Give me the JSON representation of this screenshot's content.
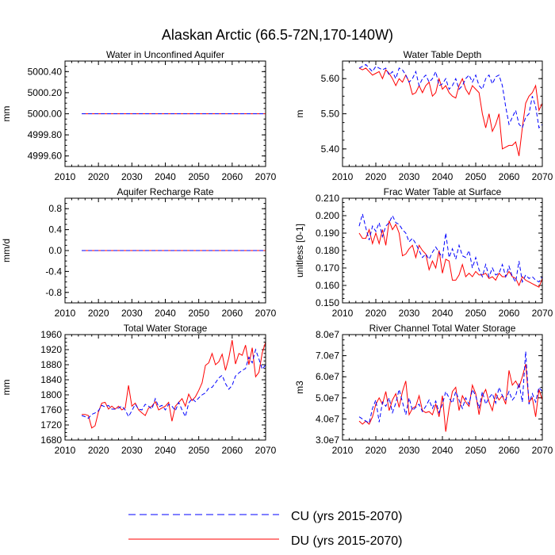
{
  "figure_title": "Alaskan Arctic (66.5-72N,170-140W)",
  "legend": {
    "cu_label": "CU (yrs 2015-2070)",
    "du_label": "DU (yrs 2015-2070)"
  },
  "colors": {
    "cu": "#0000ff",
    "du": "#ff0000"
  },
  "chart_data": [
    {
      "type": "line",
      "title": "Water in Unconfined Aquifer",
      "xlabel": "",
      "ylabel": "mm",
      "xlim": [
        2010,
        2070
      ],
      "ylim": [
        4999.5,
        5000.5
      ],
      "xticks": [
        2010,
        2020,
        2030,
        2040,
        2050,
        2060,
        2070
      ],
      "xticklabels": [
        "2010",
        "2020",
        "2030",
        "2040",
        "2050",
        "2060",
        "2070"
      ],
      "yticks": [
        4999.6,
        4999.8,
        5000.0,
        5000.2,
        5000.4
      ],
      "yticklabels": [
        "4999.60",
        "4999.80",
        "5000.00",
        "5000.20",
        "5000.40"
      ],
      "x_start": 2015,
      "series": [
        {
          "name": "CU",
          "values": [
            5000,
            5000,
            5000,
            5000,
            5000,
            5000,
            5000,
            5000,
            5000,
            5000,
            5000,
            5000,
            5000,
            5000,
            5000,
            5000,
            5000,
            5000,
            5000,
            5000,
            5000,
            5000,
            5000,
            5000,
            5000,
            5000,
            5000,
            5000,
            5000,
            5000,
            5000,
            5000,
            5000,
            5000,
            5000,
            5000,
            5000,
            5000,
            5000,
            5000,
            5000,
            5000,
            5000,
            5000,
            5000,
            5000,
            5000,
            5000,
            5000,
            5000,
            5000,
            5000,
            5000,
            5000,
            5000,
            5000
          ]
        },
        {
          "name": "DU",
          "values": [
            5000,
            5000,
            5000,
            5000,
            5000,
            5000,
            5000,
            5000,
            5000,
            5000,
            5000,
            5000,
            5000,
            5000,
            5000,
            5000,
            5000,
            5000,
            5000,
            5000,
            5000,
            5000,
            5000,
            5000,
            5000,
            5000,
            5000,
            5000,
            5000,
            5000,
            5000,
            5000,
            5000,
            5000,
            5000,
            5000,
            5000,
            5000,
            5000,
            5000,
            5000,
            5000,
            5000,
            5000,
            5000,
            5000,
            5000,
            5000,
            5000,
            5000,
            5000,
            5000,
            5000,
            5000,
            5000,
            5000
          ]
        }
      ]
    },
    {
      "type": "line",
      "title": "Water Table Depth",
      "xlabel": "",
      "ylabel": "m",
      "xlim": [
        2010,
        2070
      ],
      "ylim": [
        5.35,
        5.65
      ],
      "xticks": [
        2010,
        2020,
        2030,
        2040,
        2050,
        2060,
        2070
      ],
      "xticklabels": [
        "2010",
        "2020",
        "2030",
        "2040",
        "2050",
        "2060",
        "2070"
      ],
      "yticks": [
        5.4,
        5.5,
        5.6
      ],
      "yticklabels": [
        "5.40",
        "5.50",
        "5.60"
      ],
      "x_start": 2015,
      "series": [
        {
          "name": "CU",
          "values": [
            5.63,
            5.635,
            5.64,
            5.63,
            5.62,
            5.635,
            5.63,
            5.625,
            5.63,
            5.61,
            5.62,
            5.6,
            5.63,
            5.625,
            5.61,
            5.59,
            5.6,
            5.62,
            5.58,
            5.6,
            5.61,
            5.59,
            5.6,
            5.62,
            5.58,
            5.585,
            5.6,
            5.57,
            5.58,
            5.6,
            5.57,
            5.58,
            5.6,
            5.61,
            5.59,
            5.61,
            5.58,
            5.57,
            5.6,
            5.61,
            5.585,
            5.605,
            5.61,
            5.58,
            5.52,
            5.47,
            5.49,
            5.51,
            5.47,
            5.46,
            5.49,
            5.5,
            5.55,
            5.52,
            5.46,
            5.47
          ]
        },
        {
          "name": "DU",
          "values": [
            5.63,
            5.625,
            5.63,
            5.62,
            5.61,
            5.615,
            5.62,
            5.6,
            5.625,
            5.615,
            5.6,
            5.58,
            5.6,
            5.59,
            5.61,
            5.59,
            5.555,
            5.56,
            5.58,
            5.56,
            5.58,
            5.59,
            5.55,
            5.56,
            5.6,
            5.57,
            5.58,
            5.56,
            5.55,
            5.545,
            5.58,
            5.6,
            5.57,
            5.555,
            5.58,
            5.57,
            5.56,
            5.5,
            5.46,
            5.5,
            5.45,
            5.47,
            5.5,
            5.4,
            5.405,
            5.41,
            5.41,
            5.42,
            5.38,
            5.46,
            5.53,
            5.55,
            5.56,
            5.58,
            5.51,
            5.53
          ]
        }
      ]
    },
    {
      "type": "line",
      "title": "Aquifer Recharge Rate",
      "xlabel": "",
      "ylabel": "mm/d",
      "xlim": [
        2010,
        2070
      ],
      "ylim": [
        -1.0,
        1.0
      ],
      "xticks": [
        2010,
        2020,
        2030,
        2040,
        2050,
        2060,
        2070
      ],
      "xticklabels": [
        "2010",
        "2020",
        "2030",
        "2040",
        "2050",
        "2060",
        "2070"
      ],
      "yticks": [
        -0.8,
        -0.4,
        0.0,
        0.4,
        0.8
      ],
      "yticklabels": [
        "-0.8",
        "-0.4",
        "0.0",
        "0.4",
        "0.8"
      ],
      "x_start": 2015,
      "series": [
        {
          "name": "CU",
          "values": [
            0,
            0,
            0,
            0,
            0,
            0,
            0,
            0,
            0,
            0,
            0,
            0,
            0,
            0,
            0,
            0,
            0,
            0,
            0,
            0,
            0,
            0,
            0,
            0,
            0,
            0,
            0,
            0,
            0,
            0,
            0,
            0,
            0,
            0,
            0,
            0,
            0,
            0,
            0,
            0,
            0,
            0,
            0,
            0,
            0,
            0,
            0,
            0,
            0,
            0,
            0,
            0,
            0,
            0,
            0,
            0
          ]
        },
        {
          "name": "DU",
          "values": [
            0,
            0,
            0,
            0,
            0,
            0,
            0,
            0,
            0,
            0,
            0,
            0,
            0,
            0,
            0,
            0,
            0,
            0,
            0,
            0,
            0,
            0,
            0,
            0,
            0,
            0,
            0,
            0,
            0,
            0,
            0,
            0,
            0,
            0,
            0,
            0,
            0,
            0,
            0,
            0,
            0,
            0,
            0,
            0,
            0,
            0,
            0,
            0,
            0,
            0,
            0,
            0,
            0,
            0,
            0,
            0
          ]
        }
      ]
    },
    {
      "type": "line",
      "title": "Frac Water Table at Surface",
      "xlabel": "",
      "ylabel": "unitless [0-1]",
      "xlim": [
        2010,
        2070
      ],
      "ylim": [
        0.15,
        0.21
      ],
      "xticks": [
        2010,
        2020,
        2030,
        2040,
        2050,
        2060,
        2070
      ],
      "xticklabels": [
        "2010",
        "2020",
        "2030",
        "2040",
        "2050",
        "2060",
        "2070"
      ],
      "yticks": [
        0.15,
        0.16,
        0.17,
        0.18,
        0.19,
        0.2,
        0.21
      ],
      "yticklabels": [
        "0.150",
        "0.160",
        "0.170",
        "0.180",
        "0.190",
        "0.200",
        "0.210"
      ],
      "x_start": 2015,
      "series": [
        {
          "name": "CU",
          "values": [
            0.194,
            0.201,
            0.193,
            0.186,
            0.194,
            0.191,
            0.196,
            0.188,
            0.194,
            0.196,
            0.2,
            0.196,
            0.195,
            0.192,
            0.19,
            0.185,
            0.187,
            0.184,
            0.18,
            0.176,
            0.178,
            0.175,
            0.179,
            0.182,
            0.179,
            0.176,
            0.19,
            0.176,
            0.181,
            0.175,
            0.183,
            0.177,
            0.176,
            0.18,
            0.17,
            0.176,
            0.169,
            0.165,
            0.172,
            0.165,
            0.17,
            0.166,
            0.167,
            0.172,
            0.165,
            0.171,
            0.165,
            0.162,
            0.174,
            0.162,
            0.166,
            0.164,
            0.165,
            0.163,
            0.162,
            0.165
          ]
        },
        {
          "name": "DU",
          "values": [
            0.19,
            0.187,
            0.187,
            0.192,
            0.184,
            0.19,
            0.184,
            0.192,
            0.183,
            0.197,
            0.192,
            0.195,
            0.19,
            0.177,
            0.178,
            0.181,
            0.183,
            0.176,
            0.183,
            0.18,
            0.178,
            0.169,
            0.174,
            0.17,
            0.18,
            0.167,
            0.175,
            0.174,
            0.163,
            0.163,
            0.166,
            0.172,
            0.165,
            0.167,
            0.165,
            0.168,
            0.166,
            0.166,
            0.167,
            0.164,
            0.165,
            0.163,
            0.167,
            0.165,
            0.165,
            0.168,
            0.165,
            0.164,
            0.16,
            0.165,
            0.163,
            0.162,
            0.161,
            0.16,
            0.159,
            0.164
          ]
        }
      ]
    },
    {
      "type": "line",
      "title": "Total Water Storage",
      "xlabel": "",
      "ylabel": "mm",
      "xlim": [
        2010,
        2070
      ],
      "ylim": [
        1680,
        1960
      ],
      "xticks": [
        2010,
        2020,
        2030,
        2040,
        2050,
        2060,
        2070
      ],
      "xticklabels": [
        "2010",
        "2020",
        "2030",
        "2040",
        "2050",
        "2060",
        "2070"
      ],
      "yticks": [
        1680,
        1720,
        1760,
        1800,
        1840,
        1880,
        1920,
        1960
      ],
      "yticklabels": [
        "1680",
        "1720",
        "1760",
        "1800",
        "1840",
        "1880",
        "1920",
        "1960"
      ],
      "x_start": 2015,
      "series": [
        {
          "name": "CU",
          "values": [
            1745,
            1742,
            1738,
            1748,
            1752,
            1758,
            1772,
            1768,
            1772,
            1762,
            1762,
            1765,
            1770,
            1760,
            1742,
            1758,
            1775,
            1762,
            1760,
            1775,
            1770,
            1762,
            1790,
            1768,
            1772,
            1760,
            1775,
            1770,
            1758,
            1780,
            1760,
            1742,
            1778,
            1790,
            1782,
            1792,
            1800,
            1805,
            1818,
            1820,
            1832,
            1845,
            1852,
            1830,
            1815,
            1825,
            1850,
            1858,
            1865,
            1870,
            1900,
            1885,
            1920,
            1895,
            1868,
            1880
          ]
        },
        {
          "name": "DU",
          "values": [
            1748,
            1748,
            1745,
            1712,
            1718,
            1755,
            1778,
            1780,
            1762,
            1770,
            1762,
            1770,
            1760,
            1765,
            1825,
            1770,
            1778,
            1760,
            1752,
            1745,
            1765,
            1770,
            1782,
            1760,
            1765,
            1770,
            1780,
            1730,
            1770,
            1780,
            1790,
            1770,
            1802,
            1785,
            1795,
            1812,
            1832,
            1878,
            1885,
            1910,
            1880,
            1888,
            1908,
            1865,
            1898,
            1945,
            1882,
            1910,
            1905,
            1932,
            1880,
            1925,
            1848,
            1860,
            1912,
            1940
          ]
        }
      ]
    },
    {
      "type": "line",
      "title": "River Channel Total Water Storage",
      "xlabel": "",
      "ylabel": "m3",
      "xlim": [
        2010,
        2070
      ],
      "ylim": [
        30000000,
        80000000
      ],
      "xticks": [
        2010,
        2020,
        2030,
        2040,
        2050,
        2060,
        2070
      ],
      "xticklabels": [
        "2010",
        "2020",
        "2030",
        "2040",
        "2050",
        "2060",
        "2070"
      ],
      "yticks": [
        30000000,
        40000000,
        50000000,
        60000000,
        70000000,
        80000000
      ],
      "yticklabels": [
        "3.0e7",
        "4.0e7",
        "5.0e7",
        "6.0e7",
        "7.0e7",
        "8.0e7"
      ],
      "x_start": 2015,
      "series": [
        {
          "name": "CU",
          "values": [
            41000000,
            40000000,
            39000000,
            38000000,
            45000000,
            49000000,
            38500000,
            48000000,
            46000000,
            50000000,
            43000000,
            47500000,
            54000000,
            48000000,
            42000000,
            50000000,
            44000000,
            45500000,
            47000000,
            43500000,
            46000000,
            49000000,
            45000000,
            48500000,
            43000000,
            47000000,
            53000000,
            50000000,
            47500000,
            53000000,
            49000000,
            45000000,
            50000000,
            47000000,
            54000000,
            51000000,
            45000000,
            53000000,
            47000000,
            50000000,
            52000000,
            47500000,
            55000000,
            51000000,
            49000000,
            53000000,
            49000000,
            51000000,
            57000000,
            48000000,
            72000000,
            47000000,
            52000000,
            48000000,
            55000000,
            53000000
          ]
        },
        {
          "name": "DU",
          "values": [
            39000000,
            37500000,
            39000000,
            37500000,
            41000000,
            47000000,
            50000000,
            47000000,
            53000000,
            44000000,
            49000000,
            52000000,
            45500000,
            53000000,
            58000000,
            42000000,
            45000000,
            46000000,
            51000000,
            44000000,
            43000000,
            43500000,
            42000000,
            47000000,
            41000000,
            51000000,
            34000000,
            45000000,
            53000000,
            55000000,
            44000000,
            51000000,
            48000000,
            46000000,
            56000000,
            52000000,
            42000000,
            51000000,
            54000000,
            48000000,
            44000000,
            52000000,
            49000000,
            51000000,
            47000000,
            63000000,
            56000000,
            58000000,
            55000000,
            60000000,
            66000000,
            48000000,
            50000000,
            41000000,
            54000000,
            49000000
          ]
        }
      ]
    }
  ]
}
